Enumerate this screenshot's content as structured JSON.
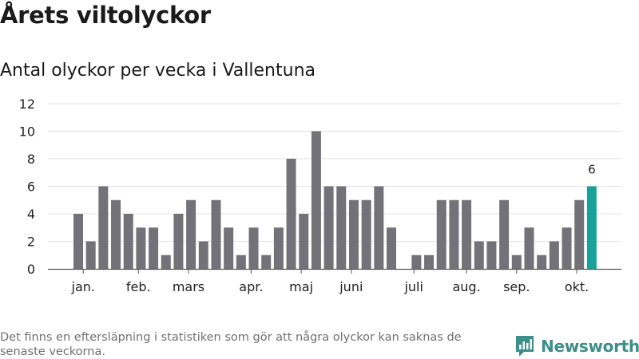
{
  "header": {
    "title": "Årets viltolyckor",
    "subtitle": "Antal olyckor per vecka i Vallentuna"
  },
  "footer": {
    "note": "Det finns en eftersläpning i statistiken som gör att några olyckor kan saknas de senaste veckorna.",
    "brand": "Newsworthy"
  },
  "colors": {
    "bar": "#737278",
    "highlight": "#17a39b",
    "grid": "#e3e3e3",
    "axis": "#555555",
    "brand": "#3e8e8a"
  },
  "chart_data": {
    "type": "bar",
    "week_start": 1,
    "values": [
      4,
      2,
      6,
      5,
      4,
      3,
      3,
      1,
      4,
      5,
      2,
      5,
      3,
      1,
      3,
      1,
      3,
      8,
      4,
      10,
      6,
      6,
      5,
      5,
      6,
      3,
      0,
      1,
      1,
      5,
      5,
      5,
      2,
      2,
      5,
      1,
      3,
      1,
      2,
      3,
      5,
      6
    ],
    "highlight_index": 41,
    "highlight_label": "6",
    "month_labels": [
      {
        "label": "jan.",
        "week": 1.4
      },
      {
        "label": "feb.",
        "week": 5.8
      },
      {
        "label": "mars",
        "week": 9.8
      },
      {
        "label": "apr.",
        "week": 14.8
      },
      {
        "label": "maj",
        "week": 18.8
      },
      {
        "label": "juni",
        "week": 22.8
      },
      {
        "label": "juli",
        "week": 27.8
      },
      {
        "label": "aug.",
        "week": 32.0
      },
      {
        "label": "sep.",
        "week": 36.0
      },
      {
        "label": "okt.",
        "week": 40.8
      }
    ],
    "y_ticks": [
      0,
      2,
      4,
      6,
      8,
      10,
      12
    ],
    "ylim": [
      0,
      12
    ],
    "grid": true
  }
}
